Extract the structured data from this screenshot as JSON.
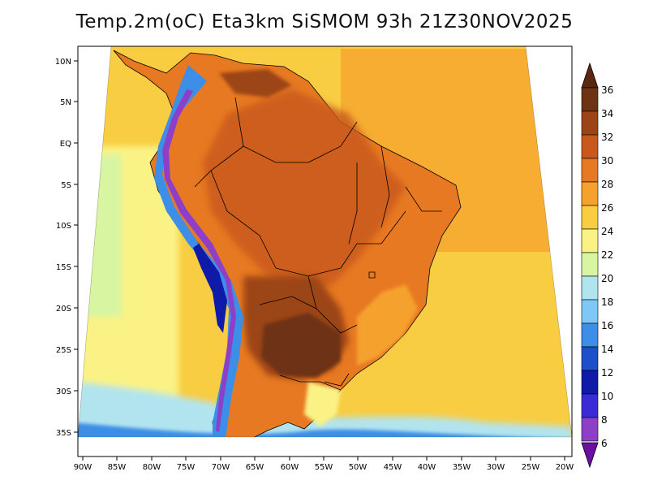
{
  "title": "Temp.2m(oC) Eta3km SiSMOM 93h 21Z30NOV2025",
  "lat_ticks": [
    "10N",
    "5N",
    "EQ",
    "5S",
    "10S",
    "15S",
    "20S",
    "25S",
    "30S",
    "35S"
  ],
  "lon_ticks": [
    "90W",
    "85W",
    "80W",
    "75W",
    "70W",
    "65W",
    "60W",
    "55W",
    "50W",
    "45W",
    "40W",
    "35W",
    "30W",
    "25W",
    "20W"
  ],
  "colorbar": {
    "labels": [
      "36",
      "34",
      "32",
      "30",
      "28",
      "26",
      "24",
      "22",
      "20",
      "18",
      "16",
      "14",
      "12",
      "10",
      "8",
      "6"
    ],
    "colors": [
      "#6e3312",
      "#9c4418",
      "#c8581b",
      "#e77922",
      "#f5a12e",
      "#f8cd42",
      "#fbf286",
      "#d8f5a2",
      "#b2e4ef",
      "#7fc8f5",
      "#3c8ee6",
      "#1c4fc8",
      "#0f1ba8",
      "#3b2bd6",
      "#8e3fc8",
      "#7a1ea6"
    ],
    "top_arrow_color": "#5a280e",
    "bottom_arrow_color": "#6a0fa0"
  },
  "colors": {
    "ocean": "#f7c64a",
    "land": "#e77922",
    "hot": "#9c4418",
    "hottest": "#6e3312",
    "andes_cold": "#3c8ee6",
    "andes_coldest": "#8e3fc8",
    "south_ocean": "#7fc8f5"
  }
}
